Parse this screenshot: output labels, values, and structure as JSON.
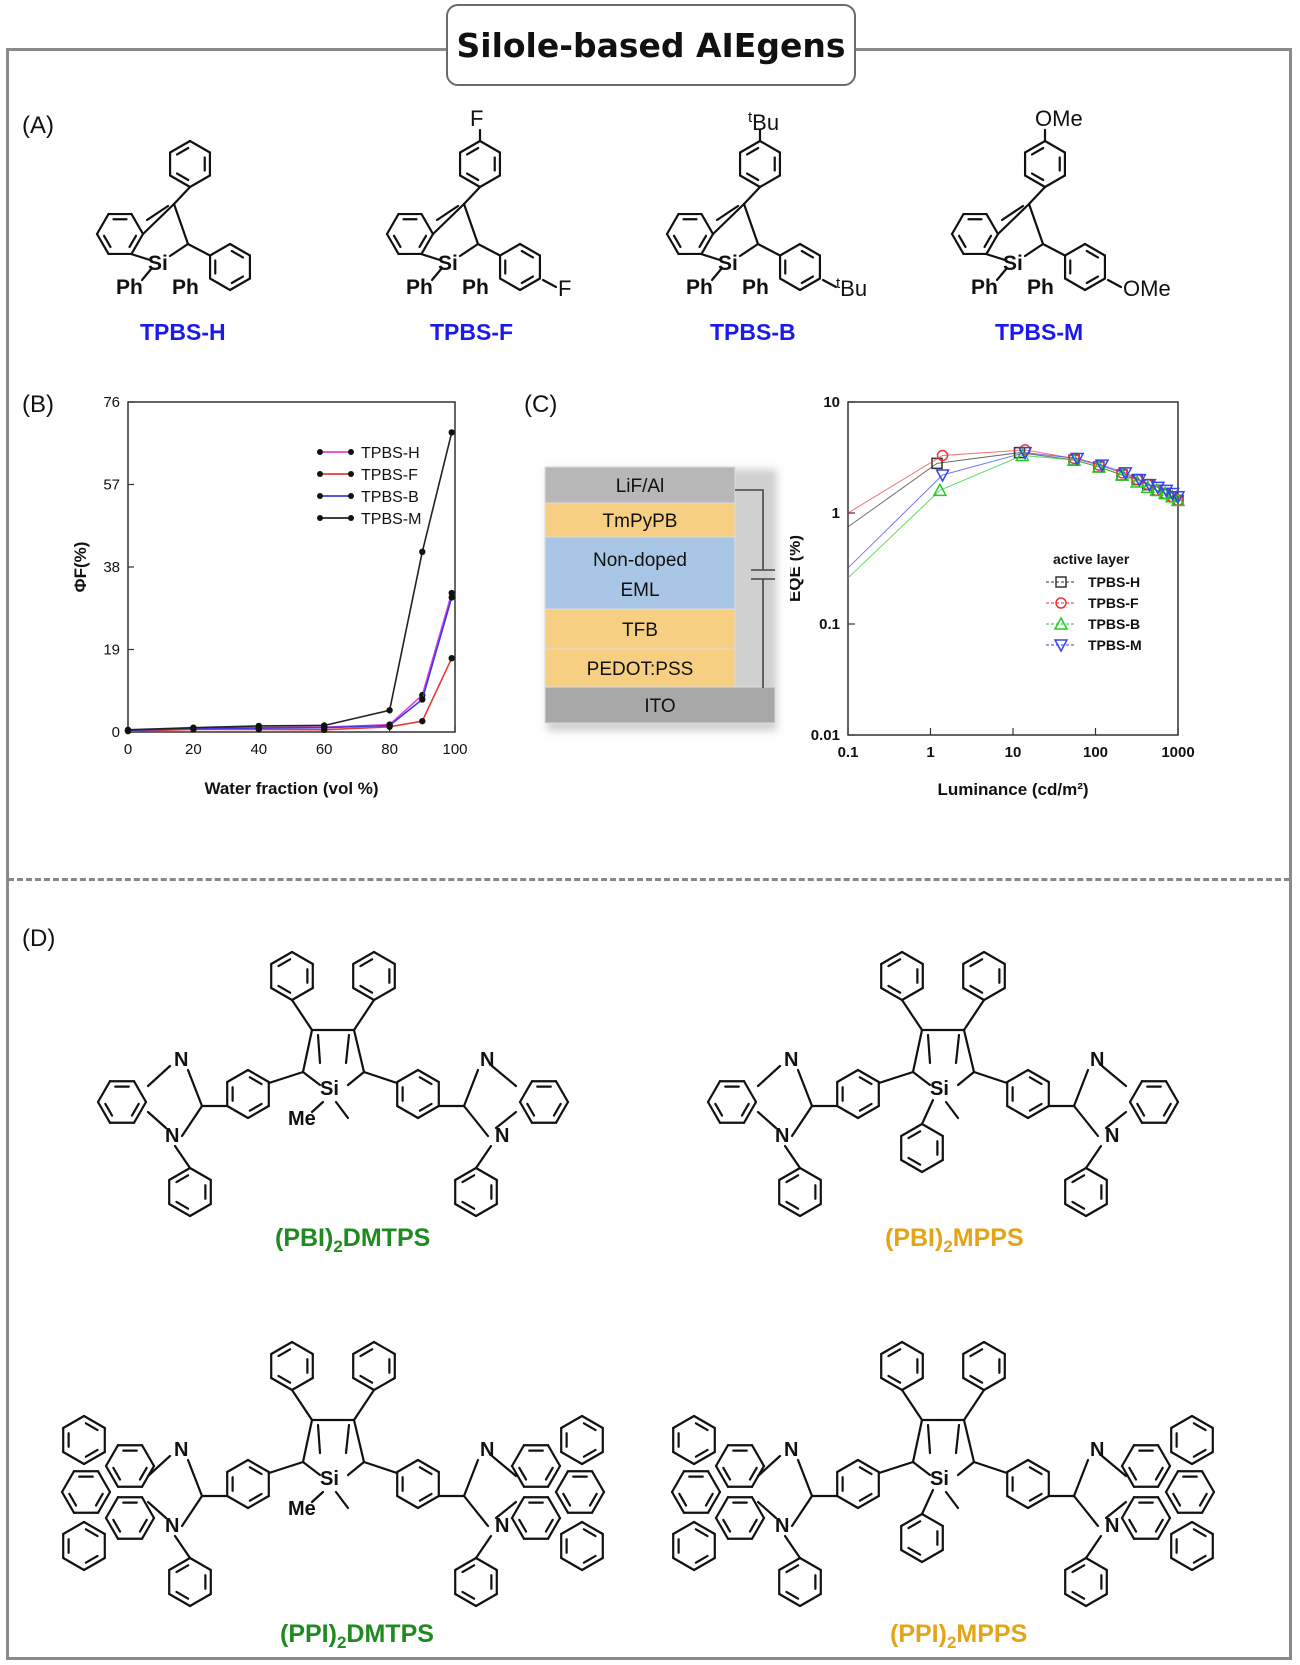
{
  "title": "Silole-based AIEgens",
  "panels": {
    "A": "(A)",
    "B": "(B)",
    "C": "(C)",
    "D": "(D)"
  },
  "colors": {
    "blue_label": "#1a1aee",
    "green_label": "#1f8a1f",
    "gold_label": "#e3a517"
  },
  "panel_a": {
    "compounds": [
      {
        "name": "TPBS-H",
        "sub_top": "",
        "sub_side": ""
      },
      {
        "name": "TPBS-F",
        "sub_top": "F",
        "sub_side": "F"
      },
      {
        "name": "TPBS-B",
        "sub_top": "tBu",
        "sub_side": "tBu"
      },
      {
        "name": "TPBS-M",
        "sub_top": "OMe",
        "sub_side": "OMe"
      }
    ],
    "si": "Si",
    "ph": "Ph"
  },
  "panel_c_device": {
    "layers": [
      "LiF/Al",
      "TmPyPB",
      "Non-doped",
      "EML",
      "TFB",
      "PEDOT:PSS",
      "ITO"
    ]
  },
  "panel_d": {
    "compounds": [
      {
        "name": "(PBI)",
        "sub": "2",
        "suffix": "DMTPS"
      },
      {
        "name": "(PBI)",
        "sub": "2",
        "suffix": "MPPS"
      },
      {
        "name": "(PPI)",
        "sub": "2",
        "suffix": "DMTPS"
      },
      {
        "name": "(PPI)",
        "sub": "2",
        "suffix": "MPPS"
      }
    ],
    "atoms": {
      "si": "Si",
      "n": "N",
      "me": "Me"
    }
  },
  "chart_data": [
    {
      "type": "line",
      "xlabel": "Water fraction (vol %)",
      "ylabel": "ΦF(%)",
      "xlim": [
        0,
        100
      ],
      "ylim": [
        0,
        76
      ],
      "xticks": [
        0,
        20,
        40,
        60,
        80,
        100
      ],
      "yticks": [
        0,
        19,
        38,
        57,
        76
      ],
      "legend": "top-right",
      "series": [
        {
          "name": "TPBS-H",
          "color": "#e040e0",
          "x": [
            0,
            20,
            40,
            60,
            80,
            90,
            99
          ],
          "y": [
            0.3,
            0.9,
            1.0,
            1.1,
            1.7,
            8.5,
            32
          ]
        },
        {
          "name": "TPBS-F",
          "color": "#e83a3a",
          "x": [
            0,
            20,
            40,
            60,
            80,
            90,
            99
          ],
          "y": [
            0.2,
            0.6,
            0.6,
            0.5,
            1.2,
            2.5,
            17
          ]
        },
        {
          "name": "TPBS-B",
          "color": "#3a3ae8",
          "x": [
            0,
            20,
            40,
            60,
            80,
            90,
            99
          ],
          "y": [
            0.4,
            0.8,
            0.9,
            1.0,
            1.5,
            7.5,
            31
          ]
        },
        {
          "name": "TPBS-M",
          "color": "#222222",
          "x": [
            0,
            20,
            40,
            60,
            80,
            90,
            99
          ],
          "y": [
            0.5,
            1.0,
            1.4,
            1.5,
            5.0,
            41.5,
            69
          ]
        }
      ]
    },
    {
      "type": "scatter",
      "xlabel": "Luminance (cd/m²)",
      "ylabel": "EQE (%)",
      "xscale": "log",
      "yscale": "log",
      "xlim": [
        0.1,
        1000
      ],
      "ylim": [
        0.01,
        10
      ],
      "xticks": [
        "0.1",
        "1",
        "10",
        "100",
        "1000"
      ],
      "yticks": [
        "0.01",
        "0.1",
        "1",
        "10"
      ],
      "legend_title": "active layer",
      "legend": "center-right",
      "series": [
        {
          "name": "TPBS-H",
          "color": "#333333",
          "marker": "square",
          "x": [
            0.1,
            1.2,
            12,
            55,
            110,
            210,
            320,
            430,
            550,
            700,
            850,
            1000
          ],
          "y": [
            0.75,
            2.8,
            3.5,
            3.0,
            2.6,
            2.2,
            2.0,
            1.8,
            1.6,
            1.5,
            1.4,
            1.3
          ]
        },
        {
          "name": "TPBS-F",
          "color": "#ee3333",
          "marker": "circle",
          "x": [
            0.1,
            1.4,
            14,
            55,
            110,
            210,
            320,
            430,
            550,
            700,
            850,
            1000
          ],
          "y": [
            1.0,
            3.3,
            3.7,
            3.1,
            2.7,
            2.3,
            2.0,
            1.8,
            1.6,
            1.5,
            1.4,
            1.3
          ]
        },
        {
          "name": "TPBS-B",
          "color": "#22cc22",
          "marker": "triangle-up",
          "x": [
            0.1,
            1.3,
            13,
            55,
            110,
            210,
            320,
            430,
            550,
            700,
            850,
            1000
          ],
          "y": [
            0.26,
            1.6,
            3.3,
            3.0,
            2.6,
            2.2,
            1.9,
            1.7,
            1.6,
            1.5,
            1.4,
            1.3
          ]
        },
        {
          "name": "TPBS-M",
          "color": "#3344ee",
          "marker": "triangle-down",
          "x": [
            0.1,
            1.4,
            14,
            60,
            120,
            230,
            340,
            450,
            570,
            720,
            860,
            1000
          ],
          "y": [
            0.32,
            2.2,
            3.5,
            3.1,
            2.7,
            2.3,
            2.0,
            1.8,
            1.7,
            1.6,
            1.5,
            1.4
          ]
        }
      ]
    }
  ]
}
